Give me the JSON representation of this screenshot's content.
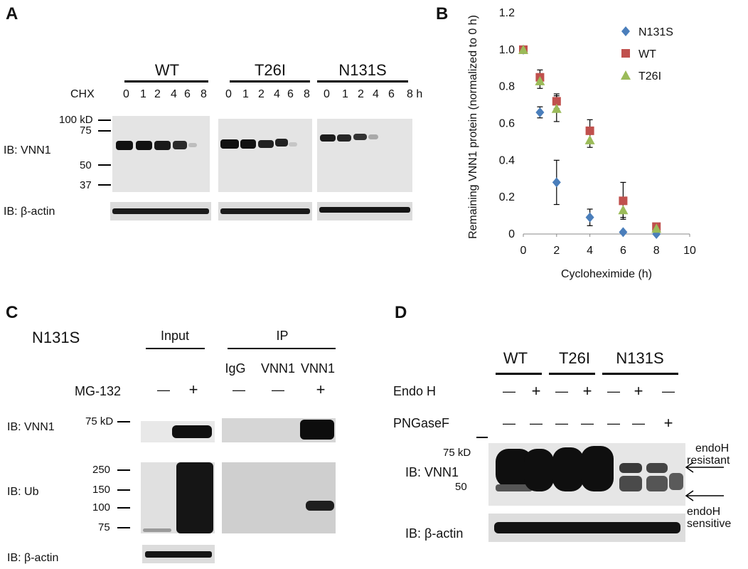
{
  "panelA": {
    "label": "A",
    "groups": [
      "WT",
      "T26I",
      "N131S"
    ],
    "cond_label": "CHX",
    "lanes": [
      "0",
      "1",
      "2",
      "4",
      "6",
      "8",
      "0",
      "1",
      "2",
      "4",
      "6",
      "8",
      "0",
      "1",
      "2",
      "4",
      "6",
      "8 h"
    ],
    "markers": [
      "100 kD",
      "75",
      "50",
      "37"
    ],
    "rows": [
      "IB: VNN1",
      "IB: β-actin"
    ]
  },
  "panelB": {
    "label": "B",
    "chart_data": {
      "type": "scatter",
      "xlabel": "Cycloheximide (h)",
      "ylabel": "Remaining VNN1 protein (normalized to 0 h)",
      "xlim": [
        0,
        10
      ],
      "ylim": [
        0,
        1.2
      ],
      "xticks": [
        "0",
        "2",
        "4",
        "6",
        "8",
        "10"
      ],
      "yticks": [
        "0",
        "0.2",
        "0.4",
        "0.6",
        "0.8",
        "1.0",
        "1.2"
      ],
      "legend_position": "top-right",
      "series": [
        {
          "name": "N131S",
          "marker": "diamond",
          "color": "#4a7ebb",
          "x": [
            0,
            1,
            2,
            4,
            6,
            8
          ],
          "y": [
            1.0,
            0.66,
            0.28,
            0.09,
            0.01,
            0.0
          ],
          "err": [
            0,
            0.03,
            0.12,
            0.045,
            0,
            0
          ]
        },
        {
          "name": "WT",
          "marker": "square",
          "color": "#c0504d",
          "x": [
            0,
            1,
            2,
            4,
            6,
            8
          ],
          "y": [
            1.0,
            0.85,
            0.72,
            0.56,
            0.18,
            0.04
          ],
          "err": [
            0,
            0.04,
            0.04,
            0.06,
            0.1,
            0
          ]
        },
        {
          "name": "T26I",
          "marker": "triangle",
          "color": "#9bbb59",
          "x": [
            0,
            1,
            2,
            4,
            6,
            8
          ],
          "y": [
            1.0,
            0.83,
            0.68,
            0.51,
            0.13,
            0.03
          ],
          "err": [
            0,
            0.04,
            0.07,
            0.04,
            0.04,
            0
          ]
        }
      ]
    }
  },
  "panelC": {
    "label": "C",
    "title": "N131S",
    "input_label": "Input",
    "ip_label": "IP",
    "ip_lanes": [
      "IgG",
      "VNN1",
      "VNN1"
    ],
    "treatment": "MG-132",
    "signs": [
      "—",
      "+",
      "—",
      "—",
      "+"
    ],
    "markers_top": [
      "75 kD"
    ],
    "markers_ub": [
      "250",
      "150",
      "100",
      "75"
    ],
    "rows": [
      "IB: VNN1",
      "IB:  Ub",
      "IB: β-actin"
    ]
  },
  "panelD": {
    "label": "D",
    "groups": [
      "WT",
      "T26I",
      "N131S"
    ],
    "endo_label": "Endo H",
    "endo_signs": [
      "—",
      "+",
      "—",
      "+",
      "—",
      "+",
      "—"
    ],
    "pngase_label": "PNGaseF",
    "pngase_signs": [
      "—",
      "—",
      "—",
      "—",
      "—",
      "—",
      "+"
    ],
    "markers": [
      "75 kD",
      "50"
    ],
    "rows": [
      "IB: VNN1",
      "IB: β-actin"
    ],
    "annot_top": [
      "endoH",
      "resistant"
    ],
    "annot_bottom": [
      "endoH",
      "sensitive"
    ]
  }
}
